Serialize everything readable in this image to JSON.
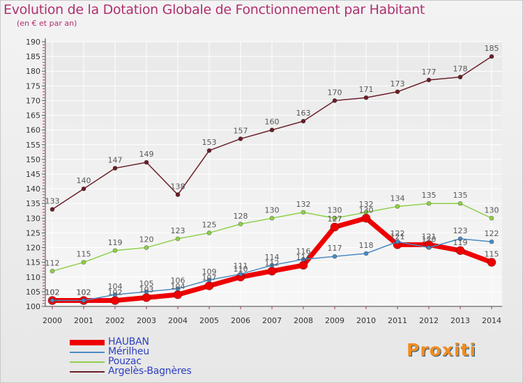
{
  "chart_data": {
    "type": "line",
    "title": "Evolution de la Dotation Globale de Fonctionnement par Habitant",
    "subtitle": "(en € et par an)",
    "categories": [
      "2000",
      "2001",
      "2002",
      "2003",
      "2004",
      "2005",
      "2006",
      "2007",
      "2008",
      "2009",
      "2010",
      "2011",
      "2012",
      "2013",
      "2014"
    ],
    "ylim": [
      100,
      190
    ],
    "yticks": [
      "100",
      "105",
      "110",
      "115",
      "120",
      "125",
      "130",
      "135",
      "140",
      "145",
      "150",
      "155",
      "160",
      "165",
      "170",
      "175",
      "180",
      "185",
      "190"
    ],
    "grid": true,
    "legend_position": "bottom-left",
    "series": [
      {
        "name": "HAUBAN",
        "color": "#ee0000",
        "values": [
          102,
          102,
          102,
          103,
          104,
          107,
          110,
          112,
          114,
          127,
          130,
          121,
          121,
          119,
          115
        ]
      },
      {
        "name": "Mérilheu",
        "color": "#4a8bc2",
        "values": [
          102,
          102,
          104,
          105,
          106,
          109,
          111,
          114,
          116,
          117,
          118,
          122,
          120,
          123,
          122
        ]
      },
      {
        "name": "Pouzac",
        "color": "#8fd04a",
        "values": [
          112,
          115,
          119,
          120,
          123,
          125,
          128,
          130,
          132,
          130,
          132,
          134,
          135,
          135,
          130
        ]
      },
      {
        "name": "Argelès-Bagnères",
        "color": "#6b1f28",
        "values": [
          133,
          140,
          147,
          149,
          138,
          153,
          157,
          160,
          163,
          170,
          171,
          173,
          177,
          178,
          185
        ]
      }
    ]
  },
  "logo": {
    "text": "Proxiti"
  }
}
